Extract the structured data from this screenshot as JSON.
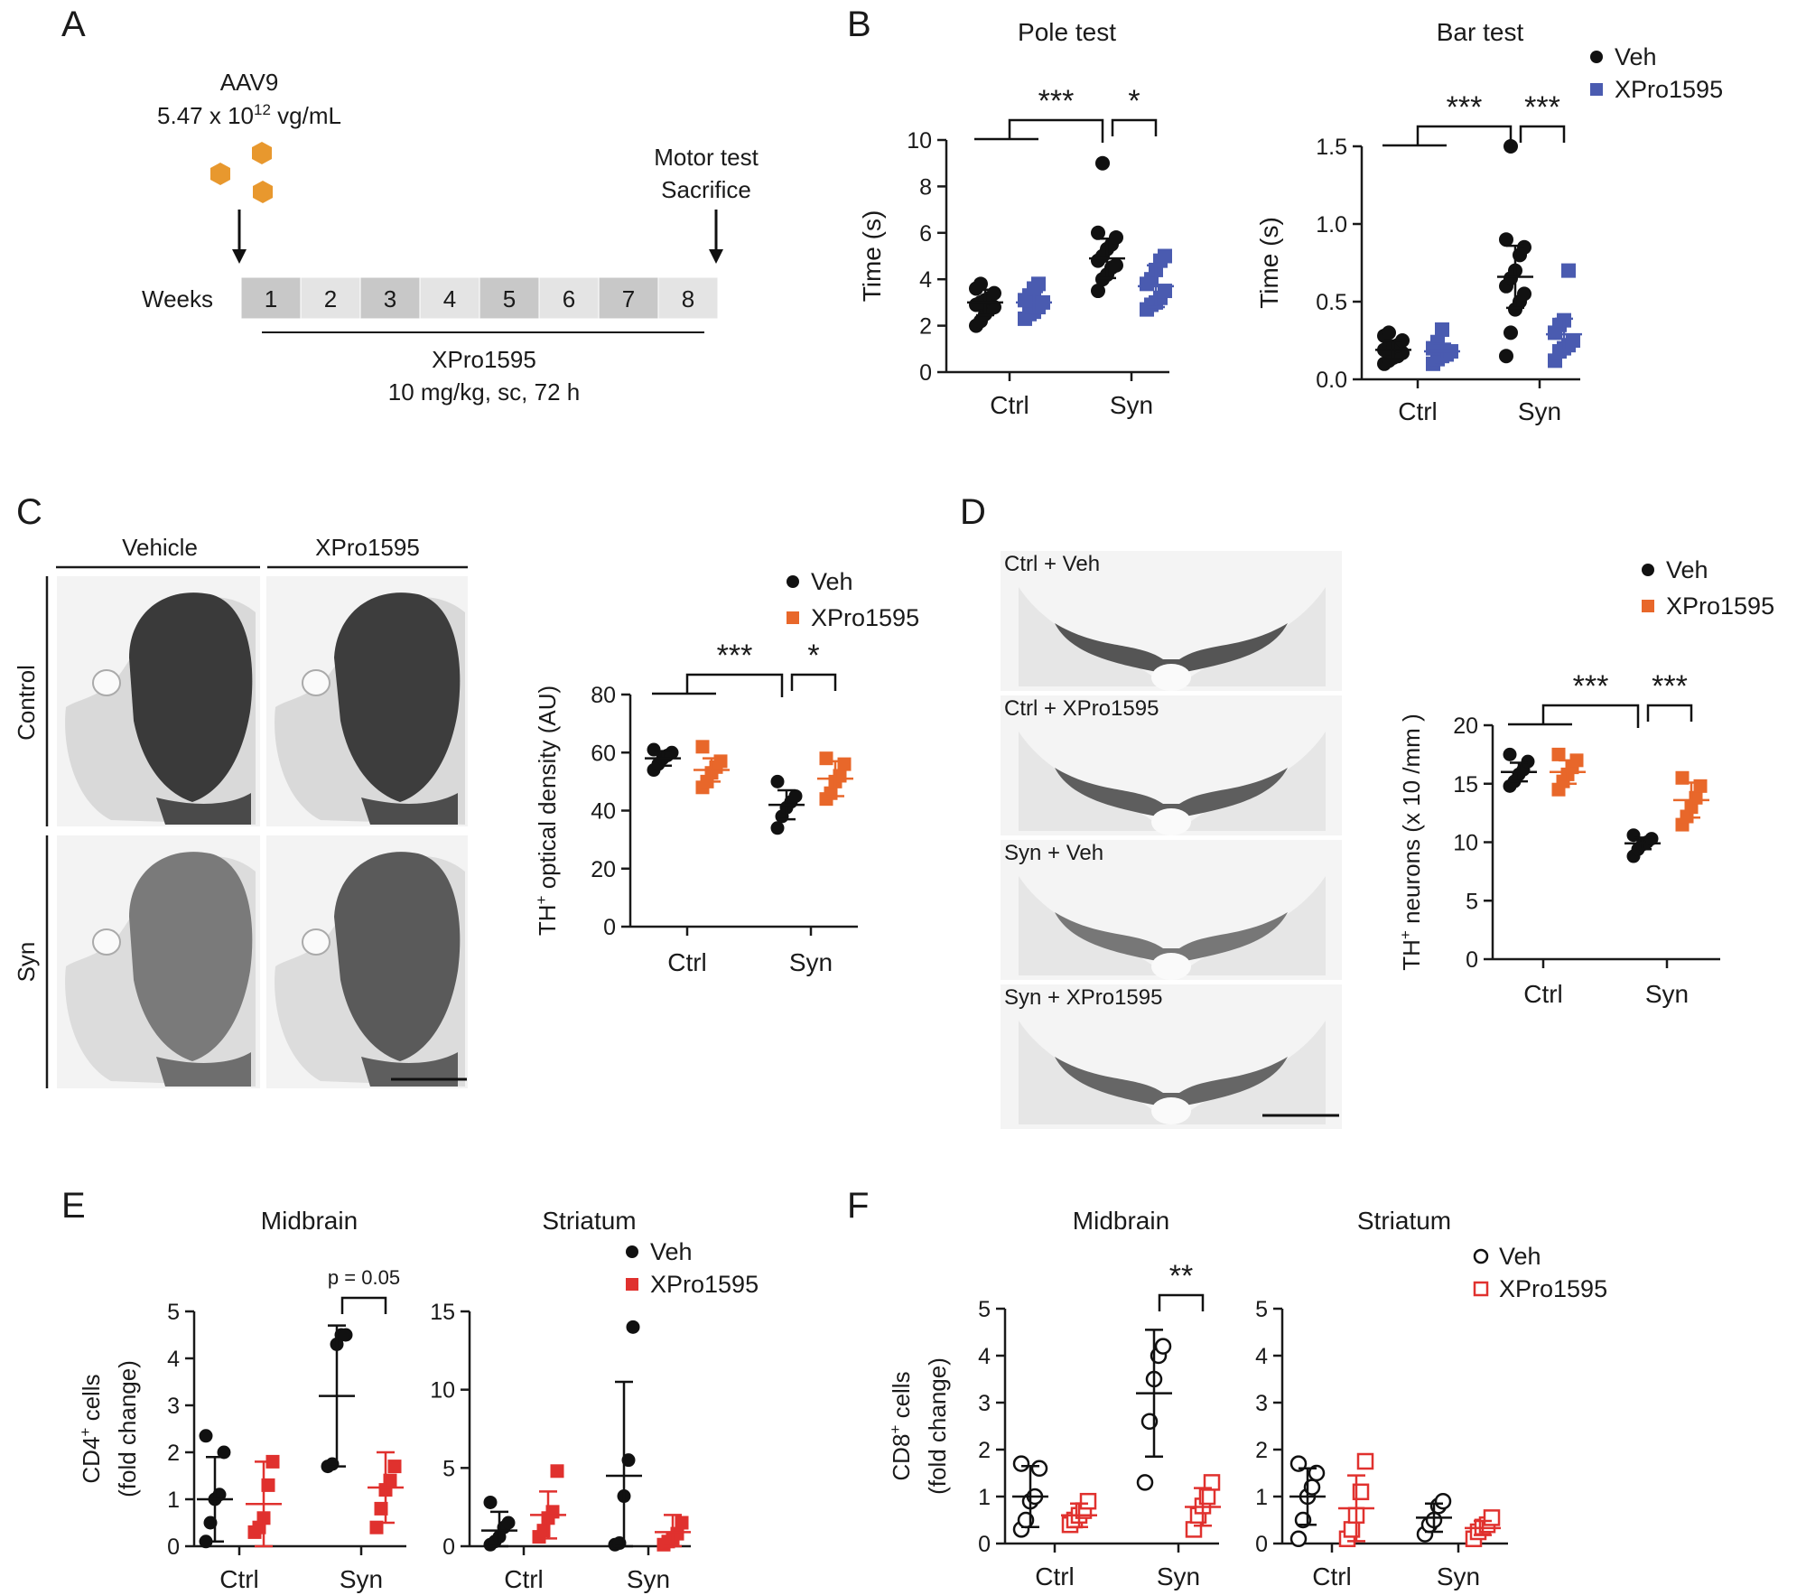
{
  "figure": {
    "panel_letters": {
      "A": "A",
      "B": "B",
      "C": "C",
      "D": "D",
      "E": "E",
      "F": "F"
    },
    "colors": {
      "veh": "#111111",
      "xpro_blue": "#4a5bb0",
      "xpro_orange": "#e8672a",
      "xpro_red": "#e0312e",
      "orange_hex": "#e8982e",
      "tile_dark": "#c8c8c8",
      "tile_light": "#e4e4e4"
    }
  },
  "panelA": {
    "vector_name": "AAV9",
    "titer_prefix": "5.47 x 10",
    "titer_exp": "12",
    "titer_suffix": " vg/mL",
    "endpoint_line1": "Motor test",
    "endpoint_line2": "Sacrifice",
    "weeks_label": "Weeks",
    "weeks": [
      "1",
      "2",
      "3",
      "4",
      "5",
      "6",
      "7",
      "8"
    ],
    "treatment_name": "XPro1595",
    "treatment_dose": "10 mg/kg, sc, 72 h"
  },
  "panelC": {
    "col_headers": [
      "Vehicle",
      "XPro1595"
    ],
    "row_headers": [
      "Control",
      "Syn"
    ]
  },
  "panelD": {
    "image_labels": [
      "Ctrl + Veh",
      "Ctrl + XPro1595",
      "Syn + Veh",
      "Syn + XPro1595"
    ]
  },
  "chart_data": [
    {
      "id": "B-pole",
      "type": "scatter",
      "title": "Pole test",
      "ylabel": "Time (s)",
      "ylabel_sup": "",
      "ylabel_rest": "",
      "categories": [
        "Ctrl",
        "Syn"
      ],
      "ylim": [
        0,
        10
      ],
      "yticks": [
        "0",
        "2",
        "4",
        "6",
        "8",
        "10"
      ],
      "series": [
        {
          "name": "Veh",
          "mean": [
            3.0,
            4.9
          ],
          "sd": [
            0.55,
            0.85
          ],
          "points": [
            [
              2.2,
              2.5,
              2.7,
              2.8,
              3.0,
              3.1,
              3.2,
              3.4,
              3.6,
              3.8,
              2.0,
              2.9
            ],
            [
              3.5,
              4.0,
              4.2,
              4.5,
              4.8,
              5.0,
              5.3,
              5.5,
              5.8,
              6.0,
              9.0,
              4.6
            ]
          ]
        },
        {
          "name": "XPro1595",
          "mean": [
            3.0,
            3.7
          ],
          "sd": [
            0.45,
            0.9
          ],
          "points": [
            [
              2.3,
              2.6,
              2.8,
              3.0,
              3.1,
              3.3,
              3.6,
              3.8,
              2.5
            ],
            [
              2.7,
              3.0,
              3.2,
              3.5,
              3.8,
              4.0,
              4.4,
              4.8,
              5.0,
              2.9
            ]
          ]
        }
      ],
      "significance": [
        {
          "label": "***",
          "type": "interaction"
        },
        {
          "label": "*",
          "type": "pair",
          "category": 1
        }
      ]
    },
    {
      "id": "B-bar",
      "type": "scatter",
      "title": "Bar test",
      "ylabel": "Time (s)",
      "ylabel_sup": "",
      "ylabel_rest": "",
      "categories": [
        "Ctrl",
        "Syn"
      ],
      "ylim": [
        0,
        1.5
      ],
      "yticks": [
        "0.0",
        "0.5",
        "1.0",
        "1.5"
      ],
      "series": [
        {
          "name": "Veh",
          "mean": [
            0.19,
            0.66
          ],
          "sd": [
            0.06,
            0.2
          ],
          "points": [
            [
              0.1,
              0.12,
              0.15,
              0.17,
              0.19,
              0.2,
              0.22,
              0.25,
              0.28,
              0.3,
              0.14,
              0.21
            ],
            [
              0.15,
              0.3,
              0.45,
              0.55,
              0.6,
              0.65,
              0.7,
              0.8,
              0.85,
              0.9,
              1.5,
              0.5
            ]
          ]
        },
        {
          "name": "XPro1595",
          "mean": [
            0.18,
            0.29
          ],
          "sd": [
            0.05,
            0.1
          ],
          "points": [
            [
              0.1,
              0.13,
              0.16,
              0.18,
              0.2,
              0.24,
              0.32,
              0.15
            ],
            [
              0.12,
              0.18,
              0.2,
              0.25,
              0.3,
              0.35,
              0.38,
              0.7,
              0.22
            ]
          ]
        }
      ],
      "significance": [
        {
          "label": "***",
          "type": "interaction"
        },
        {
          "label": "***",
          "type": "pair",
          "category": 1
        }
      ],
      "legend": [
        "Veh",
        "XPro1595"
      ]
    },
    {
      "id": "C",
      "type": "scatter",
      "title": "",
      "ylabel": "",
      "ylabel_pre": "TH",
      "ylabel_sup": "+",
      "ylabel_rest": " optical density (AU)",
      "categories": [
        "Ctrl",
        "Syn"
      ],
      "ylim": [
        0,
        80
      ],
      "yticks": [
        "0",
        "20",
        "40",
        "60",
        "80"
      ],
      "series": [
        {
          "name": "Veh",
          "mean": [
            58,
            42
          ],
          "sd": [
            2.5,
            5
          ],
          "points": [
            [
              54,
              56,
              58,
              59,
              60,
              61
            ],
            [
              34,
              38,
              41,
              43,
              45,
              50
            ]
          ]
        },
        {
          "name": "XPro1595",
          "mean": [
            54,
            51
          ],
          "sd": [
            4,
            6
          ],
          "points": [
            [
              48,
              50,
              53,
              55,
              57,
              62
            ],
            [
              44,
              46,
              50,
              52,
              56,
              58
            ]
          ]
        }
      ],
      "significance": [
        {
          "label": "***",
          "type": "interaction"
        },
        {
          "label": "*",
          "type": "pair",
          "category": 1
        }
      ],
      "legend": [
        "Veh",
        "XPro1595"
      ]
    },
    {
      "id": "D",
      "type": "scatter",
      "title": "",
      "ylabel": "",
      "ylabel_pre": "TH",
      "ylabel_sup": "+",
      "ylabel_rest": " neurons (x 10  /mm )",
      "categories": [
        "Ctrl",
        "Syn"
      ],
      "ylim": [
        0,
        20
      ],
      "yticks": [
        "0",
        "5",
        "10",
        "15",
        "20"
      ],
      "series": [
        {
          "name": "Veh",
          "mean": [
            16,
            9.9
          ],
          "sd": [
            0.8,
            0.5
          ],
          "points": [
            [
              14.8,
              15.2,
              15.8,
              16.2,
              16.9,
              17.5
            ],
            [
              8.8,
              9.4,
              9.8,
              10.0,
              10.3,
              10.6
            ]
          ]
        },
        {
          "name": "XPro1595",
          "mean": [
            16,
            13.6
          ],
          "sd": [
            1.0,
            1.5
          ],
          "points": [
            [
              14.5,
              15.2,
              15.8,
              16.4,
              17.0,
              17.5
            ],
            [
              11.5,
              12.2,
              13.0,
              13.8,
              14.8,
              15.5
            ]
          ]
        }
      ],
      "significance": [
        {
          "label": "***",
          "type": "interaction"
        },
        {
          "label": "***",
          "type": "pair",
          "category": 1
        }
      ],
      "legend": [
        "Veh",
        "XPro1595"
      ]
    },
    {
      "id": "E-mid",
      "type": "scatter",
      "title": "Midbrain",
      "ylabel": "",
      "ylabel_pre": "CD4",
      "ylabel_sup": "+",
      "ylabel_rest": " cells",
      "ylabel_line2": "(fold change)",
      "categories": [
        "Ctrl",
        "Syn"
      ],
      "ylim": [
        0,
        5
      ],
      "yticks": [
        "0",
        "1",
        "2",
        "3",
        "4",
        "5"
      ],
      "series": [
        {
          "name": "Veh",
          "mean": [
            1.0,
            3.2
          ],
          "sd": [
            0.9,
            1.5
          ],
          "points": [
            [
              0.1,
              0.5,
              1.0,
              1.1,
              2.0,
              2.35
            ],
            [
              1.7,
              1.75,
              4.3,
              4.5,
              4.5
            ]
          ]
        },
        {
          "name": "XPro1595",
          "mean": [
            0.9,
            1.25
          ],
          "sd": [
            0.9,
            0.75
          ],
          "points": [
            [
              0.3,
              0.4,
              0.6,
              1.3,
              1.8
            ],
            [
              0.4,
              0.8,
              1.2,
              1.4,
              1.7
            ]
          ]
        }
      ],
      "significance": [
        {
          "label": "p = 0.05",
          "type": "pair",
          "category": 1
        }
      ]
    },
    {
      "id": "E-str",
      "type": "scatter",
      "title": "Striatum",
      "ylabel": "",
      "categories": [
        "Ctrl",
        "Syn"
      ],
      "ylim": [
        0,
        15
      ],
      "yticks": [
        "0",
        "5",
        "10",
        "15"
      ],
      "series": [
        {
          "name": "Veh",
          "mean": [
            1.0,
            4.5
          ],
          "sd": [
            1.2,
            6.0
          ],
          "points": [
            [
              0.1,
              0.3,
              0.6,
              1.2,
              1.5,
              2.8
            ],
            [
              0.1,
              0.2,
              3.2,
              5.5,
              14.0
            ]
          ]
        },
        {
          "name": "XPro1595",
          "mean": [
            2.0,
            0.9
          ],
          "sd": [
            1.5,
            1.1
          ],
          "points": [
            [
              0.6,
              1.0,
              1.8,
              2.2,
              4.8
            ],
            [
              0.1,
              0.3,
              0.5,
              0.8,
              1.5
            ]
          ]
        }
      ],
      "significance": [],
      "legend": [
        "Veh",
        "XPro1595"
      ]
    },
    {
      "id": "F-mid",
      "type": "scatter",
      "title": "Midbrain",
      "ylabel": "",
      "ylabel_pre": "CD8",
      "ylabel_sup": "+",
      "ylabel_rest": " cells",
      "ylabel_line2": "(fold change)",
      "categories": [
        "Ctrl",
        "Syn"
      ],
      "ylim": [
        0,
        5
      ],
      "yticks": [
        "0",
        "1",
        "2",
        "3",
        "4",
        "5"
      ],
      "series": [
        {
          "name": "Veh",
          "mean": [
            1.0,
            3.2
          ],
          "sd": [
            0.65,
            1.35
          ],
          "points": [
            [
              0.3,
              0.5,
              0.9,
              1.0,
              1.6,
              1.7
            ],
            [
              1.3,
              2.6,
              3.5,
              4.0,
              4.2
            ]
          ]
        },
        {
          "name": "XPro1595",
          "mean": [
            0.6,
            0.78
          ],
          "sd": [
            0.25,
            0.4
          ],
          "points": [
            [
              0.4,
              0.5,
              0.6,
              0.7,
              0.9
            ],
            [
              0.3,
              0.6,
              0.8,
              1.0,
              1.3
            ]
          ]
        }
      ],
      "significance": [
        {
          "label": "**",
          "type": "pair",
          "category": 1
        }
      ]
    },
    {
      "id": "F-str",
      "type": "scatter",
      "title": "Striatum",
      "ylabel": "",
      "categories": [
        "Ctrl",
        "Syn"
      ],
      "ylim": [
        0,
        5
      ],
      "yticks": [
        "0",
        "1",
        "2",
        "3",
        "4",
        "5"
      ],
      "series": [
        {
          "name": "Veh",
          "mean": [
            1.0,
            0.55
          ],
          "sd": [
            0.6,
            0.3
          ],
          "points": [
            [
              0.1,
              0.5,
              1.0,
              1.2,
              1.5,
              1.7
            ],
            [
              0.2,
              0.4,
              0.5,
              0.8,
              0.9
            ]
          ]
        },
        {
          "name": "XPro1595",
          "mean": [
            0.75,
            0.33
          ],
          "sd": [
            0.7,
            0.15
          ],
          "points": [
            [
              0.1,
              0.3,
              0.6,
              1.1,
              1.75
            ],
            [
              0.1,
              0.25,
              0.35,
              0.4,
              0.55
            ]
          ]
        }
      ],
      "significance": [],
      "legend": [
        "Veh",
        "XPro1595"
      ]
    }
  ]
}
